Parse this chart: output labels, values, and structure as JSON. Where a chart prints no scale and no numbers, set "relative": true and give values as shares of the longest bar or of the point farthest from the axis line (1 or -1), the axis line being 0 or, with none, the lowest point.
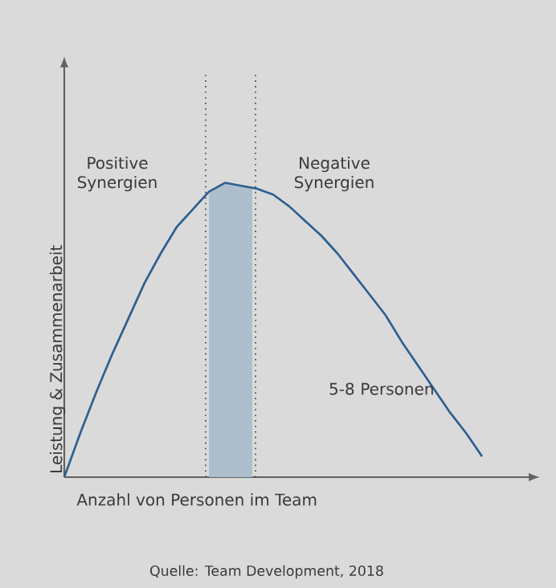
{
  "chart_data": {
    "type": "line",
    "relative": true,
    "xlabel": "Anzahl von Personen im Team",
    "ylabel": "Leistung & Zusammenarbeit",
    "categories": [
      null,
      null,
      null,
      null,
      null,
      null,
      null,
      null,
      null,
      null,
      null,
      null,
      null,
      null,
      null,
      null,
      null,
      null,
      null,
      null,
      null,
      null,
      null,
      null,
      null,
      null,
      null
    ],
    "series": [
      {
        "color": "#2d5f8f",
        "values": [
          0,
          0.15,
          0.29,
          0.42,
          0.54,
          0.66,
          0.76,
          0.85,
          0.91,
          0.97,
          1,
          0.99,
          0.98,
          0.96,
          0.92,
          0.87,
          0.82,
          0.76,
          0.69,
          0.62,
          0.55,
          0.46,
          0.38,
          0.3,
          0.22,
          0.15,
          0.07
        ]
      }
    ],
    "annotations": [
      "Positive Synergien",
      "Negative Synergien",
      "5-8 Personen",
      "Quelle: Team Development, 2018"
    ],
    "line_style": "solid"
  }
}
